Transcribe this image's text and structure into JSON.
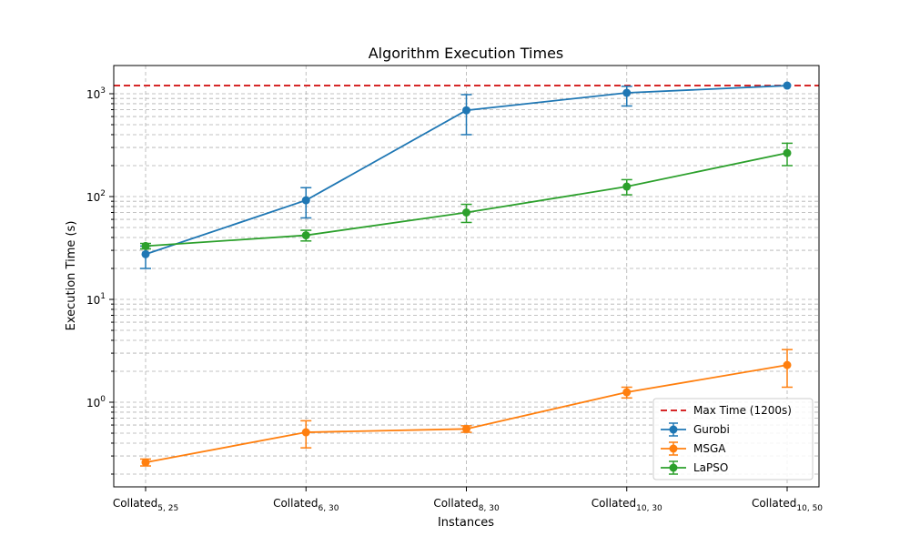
{
  "chart_data": {
    "type": "line",
    "title": "Algorithm Execution Times",
    "xlabel": "Instances",
    "ylabel": "Execution Time (s)",
    "yscale": "log",
    "ylim": [
      0.15,
      1900
    ],
    "grid": true,
    "legend_position": "bottom-right",
    "categories": [
      {
        "base": "Collated",
        "sub": "5, 25"
      },
      {
        "base": "Collated",
        "sub": "6, 30"
      },
      {
        "base": "Collated",
        "sub": "8, 30"
      },
      {
        "base": "Collated",
        "sub": "10, 30"
      },
      {
        "base": "Collated",
        "sub": "10, 50"
      }
    ],
    "y_ticks": [
      {
        "value": 1,
        "base": "10",
        "exp": "0"
      },
      {
        "value": 10,
        "base": "10",
        "exp": "1"
      },
      {
        "value": 100,
        "base": "10",
        "exp": "2"
      },
      {
        "value": 1000,
        "base": "10",
        "exp": "3"
      }
    ],
    "reference_line": {
      "label": "Max Time (1200s)",
      "value": 1200,
      "color": "#d62728",
      "style": "dashed"
    },
    "series": [
      {
        "name": "Gurobi",
        "color": "#1f77b4",
        "values": [
          27.5,
          92,
          690,
          1020,
          1200
        ],
        "err_low": [
          20,
          62,
          400,
          760,
          1200
        ],
        "err_high": [
          33,
          122,
          980,
          1180,
          1200
        ]
      },
      {
        "name": "MSGA",
        "color": "#ff7f0e",
        "values": [
          0.26,
          0.51,
          0.55,
          1.25,
          2.3
        ],
        "err_low": [
          0.24,
          0.36,
          0.51,
          1.1,
          1.4
        ],
        "err_high": [
          0.28,
          0.66,
          0.59,
          1.4,
          3.25
        ]
      },
      {
        "name": "LaPSO",
        "color": "#2ca02c",
        "values": [
          33,
          42,
          70,
          125,
          265
        ],
        "err_low": [
          31,
          37,
          56,
          104,
          200
        ],
        "err_high": [
          35,
          47,
          84,
          146,
          330
        ]
      }
    ]
  }
}
